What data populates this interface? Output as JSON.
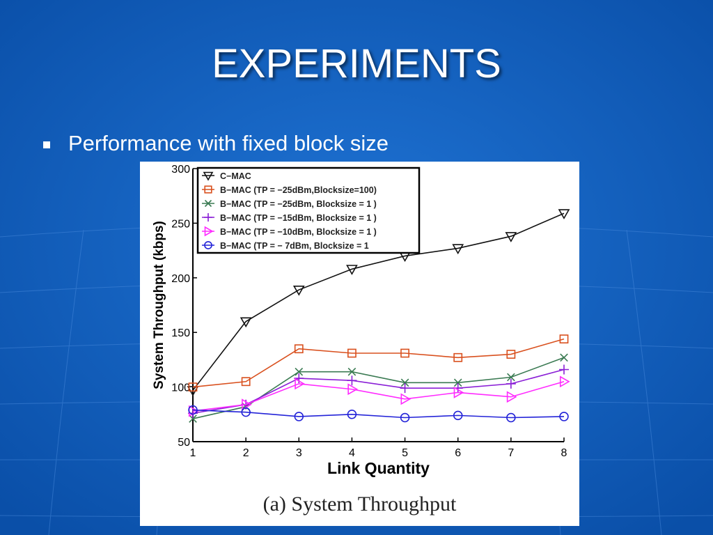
{
  "slide": {
    "title": "EXPERIMENTS",
    "bullet": "Performance with fixed block size",
    "background_color": "#0b57b6"
  },
  "figure": {
    "caption": "(a) System Throughput"
  },
  "chart_data": {
    "type": "line",
    "title": "",
    "xlabel": "Link Quantity",
    "ylabel": "System Throughput (kbps)",
    "x": [
      1,
      2,
      3,
      4,
      5,
      6,
      7,
      8
    ],
    "xlim": [
      1,
      8
    ],
    "ylim": [
      50,
      300
    ],
    "xticks": [
      "1",
      "2",
      "3",
      "4",
      "5",
      "6",
      "7",
      "8"
    ],
    "yticks": [
      "50",
      "100",
      "150",
      "200",
      "250",
      "300"
    ],
    "grid": false,
    "legend_position": "top-left",
    "series": [
      {
        "name": "C−MAC",
        "color": "#111111",
        "marker": "triangle-down",
        "values": [
          97,
          160,
          189,
          208,
          220,
          227,
          238,
          259
        ]
      },
      {
        "name": "B−MAC (TP = −25dBm,Blocksize=100)",
        "color": "#d9501e",
        "marker": "square",
        "values": [
          100,
          105,
          135,
          131,
          131,
          127,
          130,
          144
        ]
      },
      {
        "name": "B−MAC (TP = −25dBm, Blocksize = 1 )",
        "color": "#3a7a52",
        "marker": "x",
        "values": [
          71,
          82,
          114,
          114,
          104,
          104,
          109,
          127
        ]
      },
      {
        "name": "B−MAC (TP = −15dBm, Blocksize = 1 )",
        "color": "#8a1fd6",
        "marker": "plus",
        "values": [
          76,
          84,
          108,
          106,
          99,
          99,
          103,
          116
        ]
      },
      {
        "name": "B−MAC (TP = −10dBm, Blocksize = 1 )",
        "color": "#ff2bff",
        "marker": "triangle-right",
        "values": [
          78,
          84,
          103,
          98,
          89,
          95,
          91,
          105
        ]
      },
      {
        "name": "B−MAC (TP = −  7dBm, Blocksize = 1",
        "color": "#2323d8",
        "marker": "circle",
        "values": [
          79,
          77,
          73,
          75,
          72,
          74,
          72,
          73
        ]
      }
    ]
  }
}
